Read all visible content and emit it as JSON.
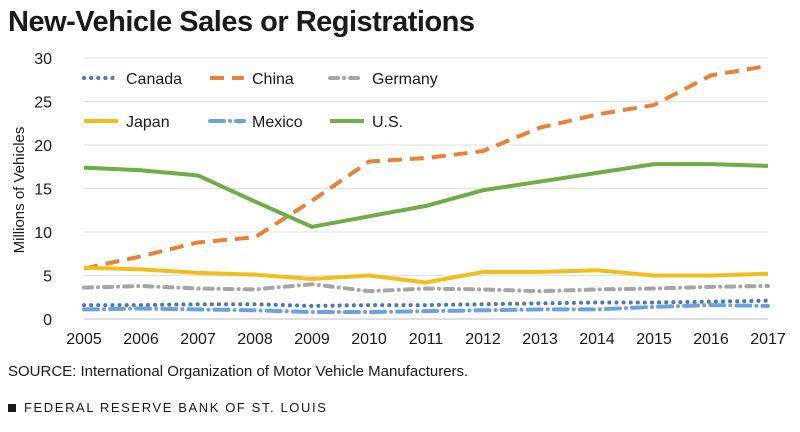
{
  "title": "New-Vehicle Sales or Registrations",
  "source": "SOURCE: International Organization of Motor Vehicle Manufacturers.",
  "footer": "FEDERAL RESERVE BANK OF ST. LOUIS",
  "chart_data": {
    "type": "line",
    "title": "New-Vehicle Sales or Registrations",
    "xlabel": "",
    "ylabel": "Millions of Vehicles",
    "x": [
      2005,
      2006,
      2007,
      2008,
      2009,
      2010,
      2011,
      2012,
      2013,
      2014,
      2015,
      2016,
      2017
    ],
    "ylim": [
      0,
      30
    ],
    "yticks": [
      0,
      5,
      10,
      15,
      20,
      25,
      30
    ],
    "legend_position": "top-left",
    "series": [
      {
        "name": "Canada",
        "color": "#4a78b8",
        "style": "dotted",
        "values": [
          1.6,
          1.6,
          1.7,
          1.7,
          1.5,
          1.6,
          1.6,
          1.7,
          1.8,
          1.9,
          1.9,
          2.0,
          2.1
        ]
      },
      {
        "name": "China",
        "color": "#e8823a",
        "style": "dashed",
        "values": [
          5.8,
          7.2,
          8.8,
          9.4,
          13.6,
          18.1,
          18.5,
          19.3,
          22.0,
          23.5,
          24.6,
          28.0,
          29.1
        ]
      },
      {
        "name": "Germany",
        "color": "#a6a6a6",
        "style": "dotdash",
        "values": [
          3.6,
          3.8,
          3.5,
          3.4,
          4.0,
          3.2,
          3.5,
          3.4,
          3.2,
          3.4,
          3.5,
          3.7,
          3.8
        ]
      },
      {
        "name": "Japan",
        "color": "#f2be1e",
        "style": "solid",
        "values": [
          5.9,
          5.7,
          5.3,
          5.1,
          4.6,
          5.0,
          4.2,
          5.4,
          5.4,
          5.6,
          5.0,
          5.0,
          5.2
        ]
      },
      {
        "name": "Mexico",
        "color": "#6fa3d8",
        "style": "dashdot",
        "values": [
          1.1,
          1.2,
          1.1,
          1.0,
          0.8,
          0.8,
          0.9,
          1.0,
          1.1,
          1.1,
          1.4,
          1.6,
          1.5
        ]
      },
      {
        "name": "U.S.",
        "color": "#70ad47",
        "style": "solid",
        "values": [
          17.4,
          17.1,
          16.5,
          13.5,
          10.6,
          11.8,
          13.0,
          14.8,
          15.8,
          16.8,
          17.8,
          17.8,
          17.6
        ]
      }
    ]
  }
}
